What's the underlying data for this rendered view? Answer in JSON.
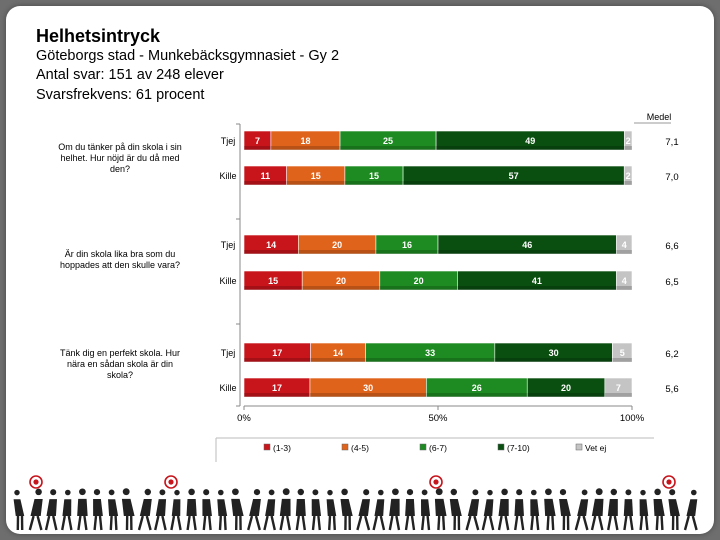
{
  "header": {
    "title": "Helhetsintryck",
    "subtitle": "Göteborgs stad - Munkebäcksgymnasiet - Gy 2",
    "responses": "Antal svar: 151 av 248 elever",
    "response_rate": "Svarsfrekvens: 61 procent"
  },
  "chart_data": {
    "type": "bar",
    "orientation": "horizontal",
    "stacked": true,
    "percent_scale": true,
    "mean_header": "Medel",
    "x_ticks": [
      "0%",
      "50%",
      "100%"
    ],
    "series_names": [
      "(1-3)",
      "(4-5)",
      "(6-7)",
      "(7-10)",
      "Vet ej"
    ],
    "colors": [
      "#c8141b",
      "#e0631c",
      "#1e8a22",
      "#0a4f10",
      "#c4c4c4"
    ],
    "questions": [
      {
        "text": "Om du tänker på din skola i sin helhet. Hur nöjd är du då med den?",
        "lines": [
          "Om du tänker på din skola i sin",
          "helhet. Hur nöjd är du då med",
          "den?"
        ],
        "rows": [
          {
            "label": "Tjej",
            "values": [
              7,
              18,
              25,
              49,
              2
            ],
            "mean": "7,1"
          },
          {
            "label": "Kille",
            "values": [
              11,
              15,
              15,
              57,
              2
            ],
            "mean": "7,0"
          }
        ]
      },
      {
        "text": "Är din skola lika bra som du hoppades att den skulle vara?",
        "lines": [
          "Är din skola lika bra som du",
          "hoppades att den skulle vara?"
        ],
        "rows": [
          {
            "label": "Tjej",
            "values": [
              14,
              20,
              16,
              46,
              4
            ],
            "mean": "6,6"
          },
          {
            "label": "Kille",
            "values": [
              15,
              20,
              20,
              41,
              4
            ],
            "mean": "6,5"
          }
        ]
      },
      {
        "text": "Tänk dig en perfekt skola. Hur nära en sådan skola är din skola?",
        "lines": [
          "Tänk dig en perfekt skola. Hur",
          "nära en sådan skola är din",
          "skola?"
        ],
        "rows": [
          {
            "label": "Tjej",
            "values": [
              17,
              14,
              33,
              30,
              5
            ],
            "mean": "6,2"
          },
          {
            "label": "Kille",
            "values": [
              17,
              30,
              26,
              20,
              7
            ],
            "mean": "5,6"
          }
        ]
      }
    ]
  }
}
